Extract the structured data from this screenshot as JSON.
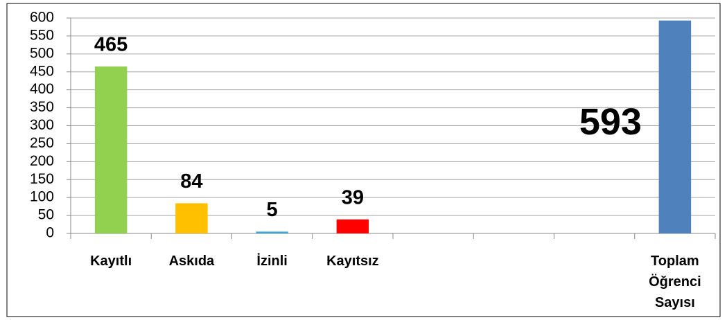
{
  "chart_data": {
    "type": "bar",
    "categories": [
      "Kayıtlı",
      "Askıda",
      "İzinli",
      "Kayıtsız",
      null,
      null,
      null,
      "Toplam Öğrenci Sayısı"
    ],
    "values": [
      465,
      84,
      5,
      39,
      null,
      null,
      null,
      593
    ],
    "colors": [
      "#92d050",
      "#ffc000",
      "#3fa6d8",
      "#ff0000",
      null,
      null,
      null,
      "#4f81bd"
    ],
    "ylim": [
      0,
      600
    ],
    "yticks": [
      0,
      50,
      100,
      150,
      200,
      250,
      300,
      350,
      400,
      450,
      500,
      550,
      600
    ],
    "grid": true
  }
}
